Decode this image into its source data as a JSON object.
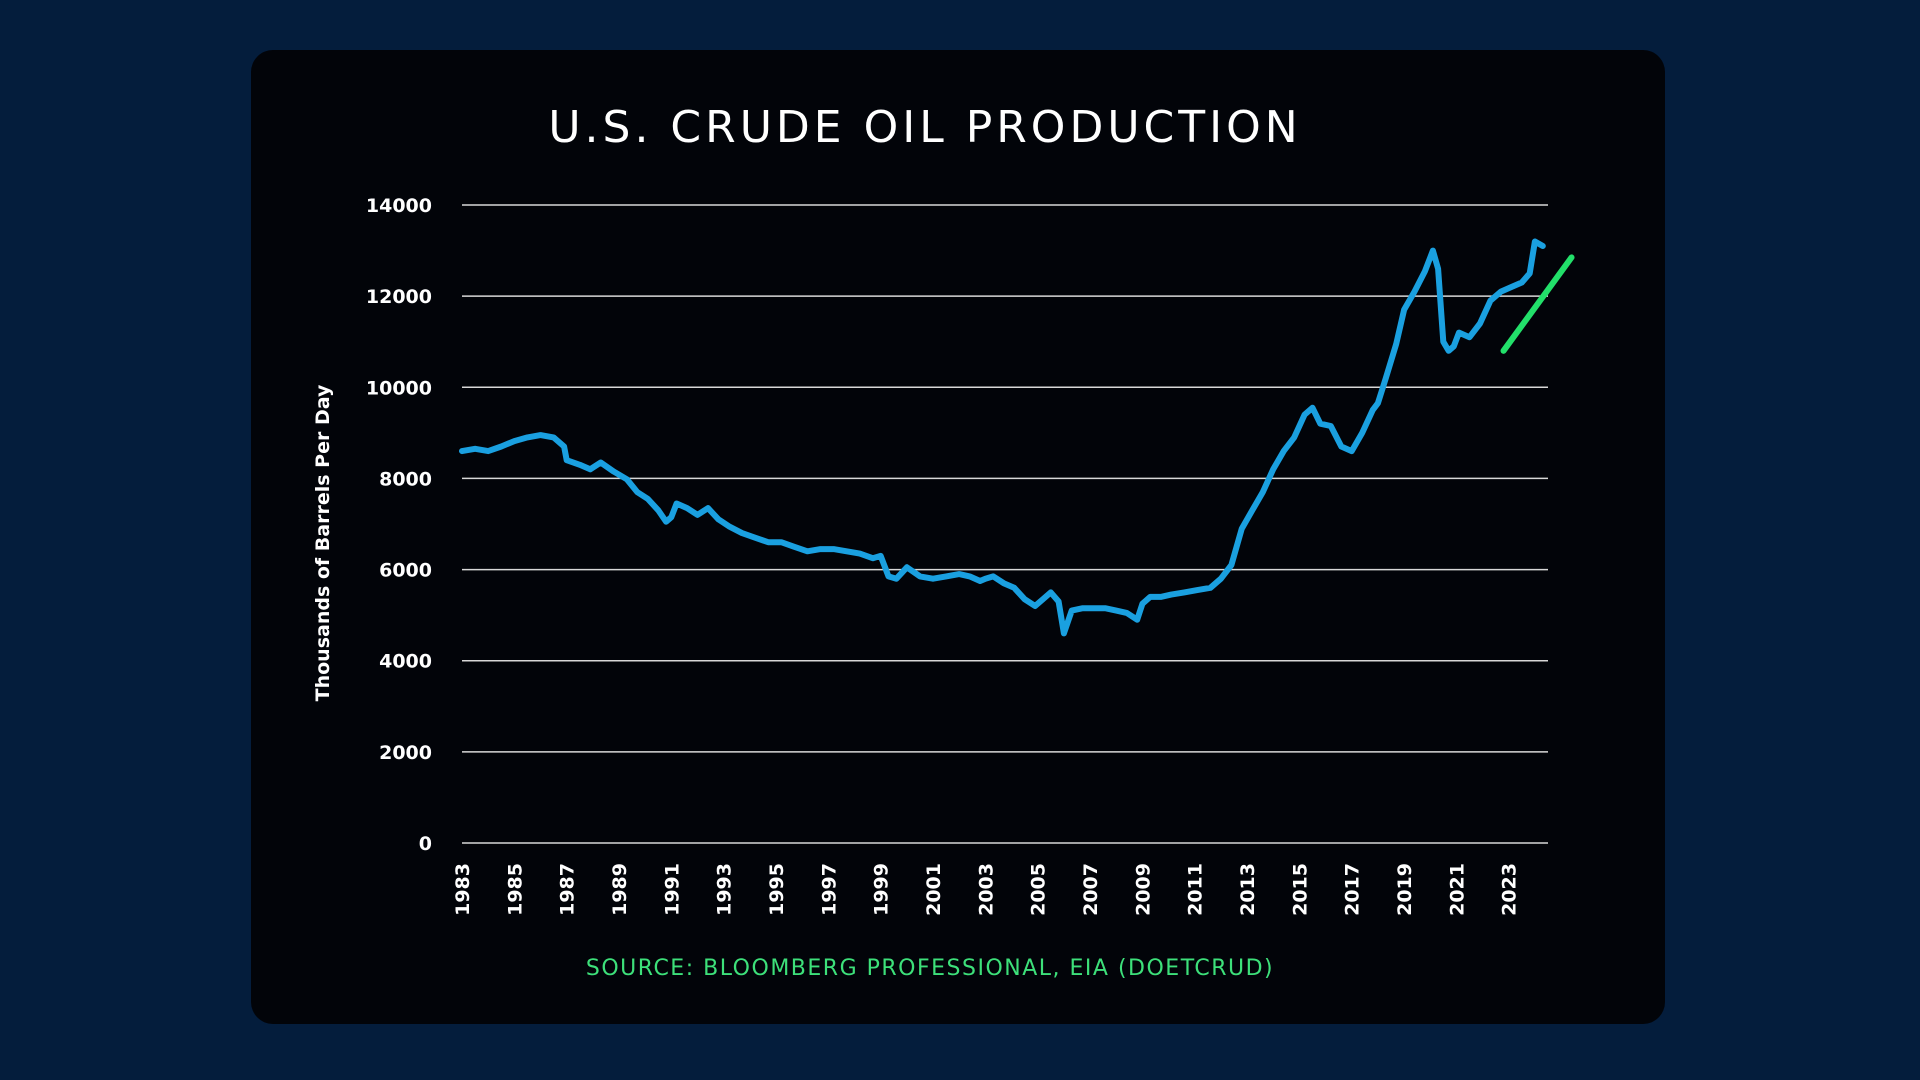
{
  "chart_data": {
    "type": "line",
    "title": "U.S. CRUDE OIL PRODUCTION",
    "ylabel": "Thousands of Barrels Per Day",
    "xlabel": "",
    "source": "SOURCE: BLOOMBERG PROFESSIONAL, EIA (DOETCRUD)",
    "ylim": [
      0,
      14000
    ],
    "xlim": [
      1983,
      2024.5
    ],
    "y_ticks": [
      "0",
      "2000",
      "4000",
      "6000",
      "8000",
      "10000",
      "12000",
      "14000"
    ],
    "x_ticks": [
      "1983",
      "1985",
      "1987",
      "1989",
      "1991",
      "1993",
      "1995",
      "1997",
      "1999",
      "2001",
      "2003",
      "2005",
      "2007",
      "2009",
      "2011",
      "2013",
      "2015",
      "2017",
      "2019",
      "2021",
      "2023"
    ],
    "grid": true,
    "colors": {
      "line": "#1aa0e0",
      "trend": "#22e06a",
      "background": "#020409",
      "page": "#041d3c"
    },
    "series": [
      {
        "x": [
          1983.0,
          1983.5,
          1984.0,
          1984.5,
          1985.0,
          1985.5,
          1986.0,
          1986.5,
          1986.9,
          1987.0,
          1987.5,
          1987.9,
          1988.3,
          1988.8,
          1989.3,
          1989.7,
          1990.1,
          1990.5,
          1990.8,
          1991.0,
          1991.2,
          1991.6,
          1992.0,
          1992.4,
          1992.8,
          1993.2,
          1993.7,
          1994.2,
          1994.7,
          1995.2,
          1995.7,
          1996.2,
          1996.7,
          1997.2,
          1997.7,
          1998.2,
          1998.7,
          1999.0,
          1999.3,
          1999.6,
          2000.0,
          2000.5,
          2001.0,
          2001.5,
          2002.0,
          2002.4,
          2002.8,
          2003.0,
          2003.3,
          2003.7,
          2004.1,
          2004.5,
          2004.9,
          2005.2,
          2005.5,
          2005.8,
          2006.0,
          2006.3,
          2006.7,
          2007.2,
          2007.6,
          2008.0,
          2008.4,
          2008.8,
          2009.0,
          2009.3,
          2009.7,
          2010.1,
          2010.6,
          2011.1,
          2011.6,
          2012.0,
          2012.4,
          2012.8,
          2013.2,
          2013.6,
          2014.0,
          2014.4,
          2014.8,
          2015.2,
          2015.5,
          2015.8,
          2016.2,
          2016.6,
          2017.0,
          2017.4,
          2017.8,
          2018.0,
          2018.3,
          2018.7,
          2019.0,
          2019.4,
          2019.8,
          2020.1,
          2020.3,
          2020.5,
          2020.7,
          2020.9,
          2021.1,
          2021.5,
          2021.9,
          2022.3,
          2022.7,
          2023.1,
          2023.5,
          2023.8,
          2024.0,
          2024.3
        ],
        "values": [
          8600,
          8650,
          8600,
          8700,
          8820,
          8900,
          8950,
          8900,
          8700,
          8400,
          8300,
          8200,
          8350,
          8150,
          7980,
          7700,
          7550,
          7300,
          7050,
          7150,
          7450,
          7350,
          7200,
          7350,
          7100,
          6950,
          6800,
          6700,
          6600,
          6600,
          6500,
          6400,
          6450,
          6450,
          6400,
          6350,
          6250,
          6300,
          5850,
          5800,
          6050,
          5850,
          5800,
          5850,
          5900,
          5850,
          5750,
          5800,
          5850,
          5700,
          5600,
          5350,
          5200,
          5350,
          5500,
          5300,
          4600,
          5100,
          5150,
          5150,
          5150,
          5100,
          5050,
          4900,
          5250,
          5400,
          5400,
          5450,
          5500,
          5550,
          5600,
          5800,
          6100,
          6900,
          7300,
          7700,
          8200,
          8600,
          8900,
          9400,
          9550,
          9200,
          9150,
          8700,
          8600,
          9000,
          9500,
          9650,
          10200,
          10950,
          11700,
          12100,
          12550,
          13000,
          12600,
          11000,
          10800,
          10900,
          11200,
          11100,
          11400,
          11900,
          12100,
          12200,
          12300,
          12500,
          13200,
          13100
        ]
      }
    ],
    "trend_line": {
      "x": [
        2022.8,
        2025.4
      ],
      "values": [
        10800,
        12850
      ]
    }
  }
}
